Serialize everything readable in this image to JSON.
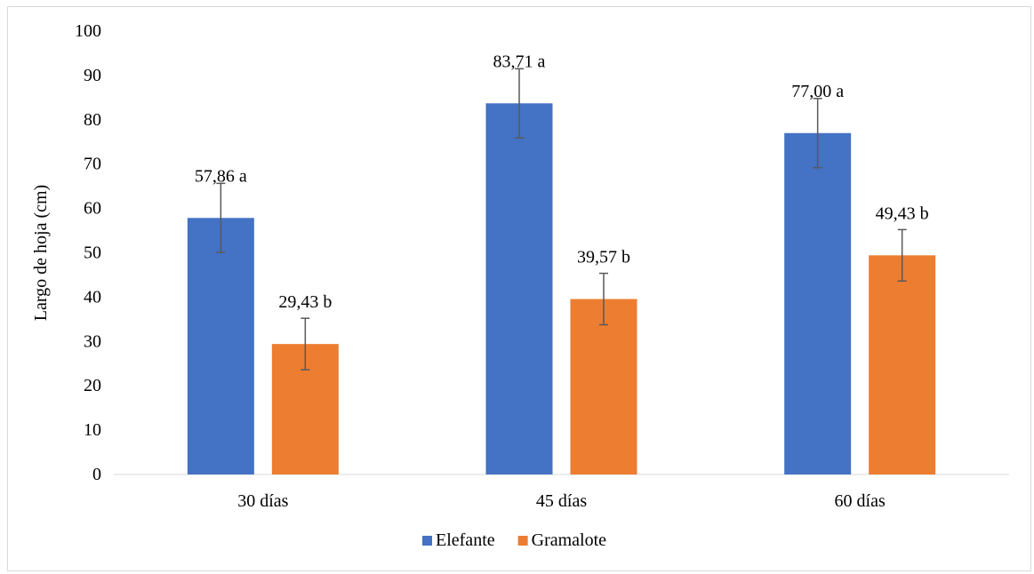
{
  "chart_data": {
    "type": "bar",
    "title": "",
    "xlabel": "",
    "ylabel": "Largo de hoja (cm)",
    "ylim": [
      0,
      100
    ],
    "yticks": [
      "0",
      "10",
      "20",
      "30",
      "40",
      "50",
      "60",
      "70",
      "80",
      "90",
      "100"
    ],
    "categories": [
      "30 días",
      "45 días",
      "60 días"
    ],
    "grid": false,
    "legend_position": "bottom",
    "series": [
      {
        "name": "Elefante",
        "color": "#4472c4",
        "values": [
          57.86,
          83.71,
          77.0
        ],
        "errors": [
          7.8,
          7.8,
          7.8
        ],
        "labels": [
          "57,86 a",
          "83,71 a",
          "77,00 a"
        ]
      },
      {
        "name": "Gramalote",
        "color": "#ed7d31",
        "values": [
          29.43,
          39.57,
          49.43
        ],
        "errors": [
          5.8,
          5.8,
          5.8
        ],
        "labels": [
          "29,43 b",
          "39,57 b",
          "49,43 b"
        ]
      }
    ]
  }
}
